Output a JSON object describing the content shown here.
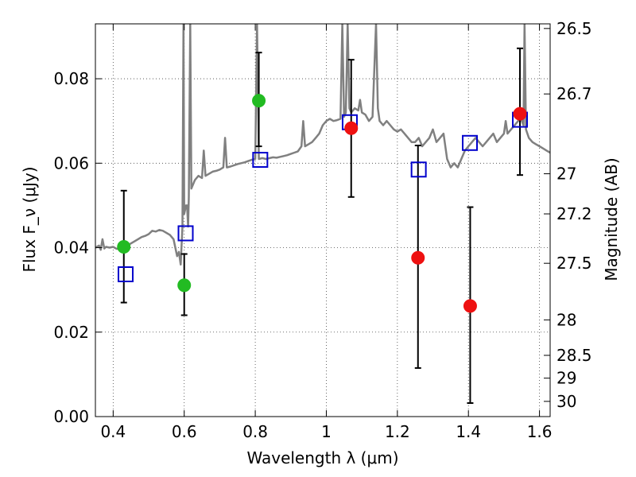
{
  "chart_data": {
    "type": "scatter",
    "xlabel": "Wavelength λ (μm)",
    "ylabel_left": "Flux F_ν (μJy)",
    "ylabel_right": "Magnitude (AB)",
    "xlim": [
      0.35,
      1.63
    ],
    "ylim": [
      0.0,
      0.093
    ],
    "grid": true,
    "x_ticks": [
      {
        "value": 0.4,
        "label": "0.4"
      },
      {
        "value": 0.6,
        "label": "0.6"
      },
      {
        "value": 0.8,
        "label": "0.8"
      },
      {
        "value": 1.0,
        "label": "1"
      },
      {
        "value": 1.2,
        "label": "1.2"
      },
      {
        "value": 1.4,
        "label": "1.4"
      },
      {
        "value": 1.6,
        "label": "1.6"
      }
    ],
    "y_ticks": [
      {
        "value": 0.0,
        "label": "0.00"
      },
      {
        "value": 0.02,
        "label": "0.02"
      },
      {
        "value": 0.04,
        "label": "0.04"
      },
      {
        "value": 0.06,
        "label": "0.06"
      },
      {
        "value": 0.08,
        "label": "0.08"
      }
    ],
    "right_ticks": [
      {
        "flux": 0.0919,
        "label": "26.5"
      },
      {
        "flux": 0.0764,
        "label": "26.7"
      },
      {
        "flux": 0.0575,
        "label": "27"
      },
      {
        "flux": 0.048,
        "label": "27.2"
      },
      {
        "flux": 0.0363,
        "label": "27.5"
      },
      {
        "flux": 0.0229,
        "label": "28"
      },
      {
        "flux": 0.0145,
        "label": "28.5"
      },
      {
        "flux": 0.0091,
        "label": "29"
      },
      {
        "flux": 0.0036,
        "label": "30"
      }
    ],
    "colors": {
      "spectrum": "#808080",
      "green_points": "#22bb22",
      "red_points": "#ee1111",
      "model_boxes": "#0000cc",
      "errorbars": "#000000",
      "grid": "#444444"
    },
    "series": [
      {
        "marker": "line",
        "color": "#808080",
        "points": [
          [
            0.35,
            0.04
          ],
          [
            0.36,
            0.0405
          ],
          [
            0.365,
            0.0395
          ],
          [
            0.37,
            0.042
          ],
          [
            0.375,
            0.0398
          ],
          [
            0.38,
            0.0402
          ],
          [
            0.39,
            0.04
          ],
          [
            0.4,
            0.0402
          ],
          [
            0.41,
            0.0397
          ],
          [
            0.42,
            0.0401
          ],
          [
            0.43,
            0.0402
          ],
          [
            0.44,
            0.0405
          ],
          [
            0.45,
            0.041
          ],
          [
            0.46,
            0.0415
          ],
          [
            0.47,
            0.042
          ],
          [
            0.48,
            0.0425
          ],
          [
            0.49,
            0.0428
          ],
          [
            0.5,
            0.0432
          ],
          [
            0.51,
            0.044
          ],
          [
            0.52,
            0.0438
          ],
          [
            0.53,
            0.0442
          ],
          [
            0.54,
            0.044
          ],
          [
            0.55,
            0.0435
          ],
          [
            0.56,
            0.043
          ],
          [
            0.57,
            0.042
          ],
          [
            0.58,
            0.038
          ],
          [
            0.585,
            0.039
          ],
          [
            0.59,
            0.036
          ],
          [
            0.595,
            0.045
          ],
          [
            0.598,
            0.093
          ],
          [
            0.6,
            0.048
          ],
          [
            0.605,
            0.05
          ],
          [
            0.608,
            0.05
          ],
          [
            0.611,
            0.045
          ],
          [
            0.613,
            0.052
          ],
          [
            0.617,
            0.093
          ],
          [
            0.62,
            0.054
          ],
          [
            0.63,
            0.056
          ],
          [
            0.64,
            0.057
          ],
          [
            0.65,
            0.0565
          ],
          [
            0.655,
            0.063
          ],
          [
            0.66,
            0.057
          ],
          [
            0.67,
            0.0575
          ],
          [
            0.68,
            0.058
          ],
          [
            0.69,
            0.0582
          ],
          [
            0.7,
            0.0585
          ],
          [
            0.71,
            0.059
          ],
          [
            0.715,
            0.066
          ],
          [
            0.72,
            0.059
          ],
          [
            0.73,
            0.0592
          ],
          [
            0.74,
            0.0595
          ],
          [
            0.75,
            0.0598
          ],
          [
            0.76,
            0.06
          ],
          [
            0.77,
            0.0602
          ],
          [
            0.78,
            0.0605
          ],
          [
            0.79,
            0.0608
          ],
          [
            0.8,
            0.061
          ],
          [
            0.805,
            0.093
          ],
          [
            0.81,
            0.061
          ],
          [
            0.82,
            0.0612
          ],
          [
            0.83,
            0.061
          ],
          [
            0.84,
            0.0612
          ],
          [
            0.85,
            0.0614
          ],
          [
            0.86,
            0.0613
          ],
          [
            0.87,
            0.0615
          ],
          [
            0.88,
            0.0617
          ],
          [
            0.89,
            0.0619
          ],
          [
            0.9,
            0.0622
          ],
          [
            0.91,
            0.0625
          ],
          [
            0.92,
            0.0628
          ],
          [
            0.93,
            0.064
          ],
          [
            0.935,
            0.07
          ],
          [
            0.94,
            0.064
          ],
          [
            0.95,
            0.0645
          ],
          [
            0.96,
            0.065
          ],
          [
            0.97,
            0.066
          ],
          [
            0.98,
            0.067
          ],
          [
            0.99,
            0.069
          ],
          [
            1.0,
            0.07
          ],
          [
            1.01,
            0.0705
          ],
          [
            1.02,
            0.07
          ],
          [
            1.03,
            0.0702
          ],
          [
            1.04,
            0.0705
          ],
          [
            1.045,
            0.093
          ],
          [
            1.05,
            0.071
          ],
          [
            1.055,
            0.072
          ],
          [
            1.06,
            0.093
          ],
          [
            1.065,
            0.073
          ],
          [
            1.07,
            0.072
          ],
          [
            1.08,
            0.073
          ],
          [
            1.09,
            0.0725
          ],
          [
            1.095,
            0.075
          ],
          [
            1.1,
            0.072
          ],
          [
            1.11,
            0.0715
          ],
          [
            1.12,
            0.07
          ],
          [
            1.13,
            0.071
          ],
          [
            1.14,
            0.093
          ],
          [
            1.145,
            0.073
          ],
          [
            1.15,
            0.07
          ],
          [
            1.16,
            0.069
          ],
          [
            1.17,
            0.07
          ],
          [
            1.18,
            0.069
          ],
          [
            1.19,
            0.068
          ],
          [
            1.2,
            0.0675
          ],
          [
            1.21,
            0.068
          ],
          [
            1.22,
            0.067
          ],
          [
            1.23,
            0.066
          ],
          [
            1.24,
            0.065
          ],
          [
            1.25,
            0.065
          ],
          [
            1.26,
            0.066
          ],
          [
            1.27,
            0.064
          ],
          [
            1.28,
            0.065
          ],
          [
            1.29,
            0.066
          ],
          [
            1.3,
            0.068
          ],
          [
            1.31,
            0.065
          ],
          [
            1.32,
            0.066
          ],
          [
            1.33,
            0.067
          ],
          [
            1.34,
            0.061
          ],
          [
            1.35,
            0.059
          ],
          [
            1.36,
            0.06
          ],
          [
            1.37,
            0.059
          ],
          [
            1.38,
            0.061
          ],
          [
            1.39,
            0.063
          ],
          [
            1.4,
            0.064
          ],
          [
            1.41,
            0.065
          ],
          [
            1.42,
            0.066
          ],
          [
            1.43,
            0.065
          ],
          [
            1.44,
            0.064
          ],
          [
            1.45,
            0.065
          ],
          [
            1.46,
            0.066
          ],
          [
            1.47,
            0.067
          ],
          [
            1.48,
            0.065
          ],
          [
            1.49,
            0.066
          ],
          [
            1.5,
            0.067
          ],
          [
            1.505,
            0.07
          ],
          [
            1.51,
            0.067
          ],
          [
            1.52,
            0.068
          ],
          [
            1.53,
            0.069
          ],
          [
            1.54,
            0.07
          ],
          [
            1.545,
            0.072
          ],
          [
            1.55,
            0.07
          ],
          [
            1.555,
            0.069
          ],
          [
            1.558,
            0.093
          ],
          [
            1.562,
            0.068
          ],
          [
            1.57,
            0.066
          ],
          [
            1.58,
            0.065
          ],
          [
            1.59,
            0.0645
          ],
          [
            1.6,
            0.064
          ],
          [
            1.61,
            0.0635
          ],
          [
            1.62,
            0.063
          ],
          [
            1.63,
            0.0625
          ]
        ]
      },
      {
        "marker": "square",
        "color": "#0000cc",
        "points": [
          [
            0.435,
            0.0337
          ],
          [
            0.604,
            0.0434
          ],
          [
            0.814,
            0.0608
          ],
          [
            1.066,
            0.0697
          ],
          [
            1.26,
            0.0585
          ],
          [
            1.404,
            0.0648
          ],
          [
            1.545,
            0.0703
          ]
        ]
      },
      {
        "marker": "circle",
        "color": "#22bb22",
        "points": [
          [
            0.43,
            0.0402
          ],
          [
            0.6,
            0.0311
          ],
          [
            0.81,
            0.0748
          ]
        ],
        "errors": [
          [
            0.027,
            0.0535
          ],
          [
            0.024,
            0.0385
          ],
          [
            0.064,
            0.0862
          ]
        ]
      },
      {
        "marker": "circle",
        "color": "#ee1111",
        "points": [
          [
            1.07,
            0.0683
          ],
          [
            1.258,
            0.0376
          ],
          [
            1.405,
            0.0262
          ],
          [
            1.545,
            0.0717
          ]
        ],
        "errors": [
          [
            0.052,
            0.0845
          ],
          [
            0.0115,
            0.0642
          ],
          [
            0.0032,
            0.0496
          ],
          [
            0.0572,
            0.0872
          ]
        ]
      }
    ]
  }
}
